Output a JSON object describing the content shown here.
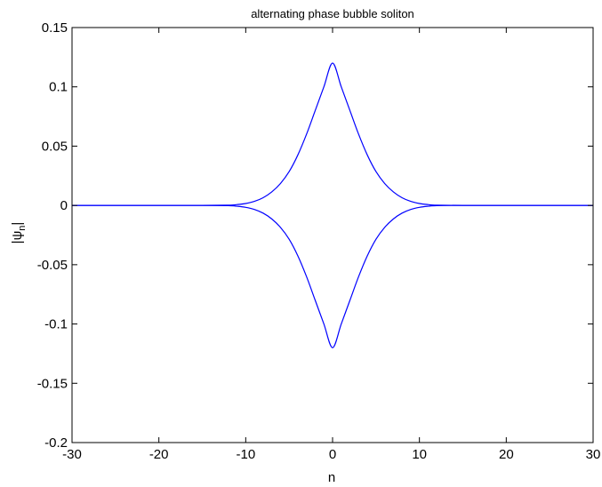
{
  "chart_data": {
    "type": "line",
    "title": "alternating phase bubble soliton",
    "xlabel": "n",
    "ylabel_main": "|ψ",
    "ylabel_sub": "n",
    "ylabel_tail": "|",
    "xlim": [
      -30,
      30
    ],
    "ylim": [
      -0.2,
      0.15
    ],
    "xticks": [
      -30,
      -20,
      -10,
      0,
      10,
      20,
      30
    ],
    "xtick_labels": [
      "-30",
      "-20",
      "-10",
      "0",
      "10",
      "20",
      "30"
    ],
    "yticks": [
      -0.2,
      -0.15,
      -0.1,
      -0.05,
      0,
      0.05,
      0.1,
      0.15
    ],
    "ytick_labels": [
      "-0.2",
      "-0.15",
      "-0.1",
      "-0.05",
      "0",
      "0.05",
      "0.1",
      "0.15"
    ],
    "grid": false,
    "line_color": "#0000ff",
    "series": [
      {
        "x": [
          -30,
          -20,
          -15,
          -12,
          -11,
          -10,
          -9,
          -8,
          -7,
          -6,
          -5,
          -4,
          -3,
          -2,
          -1,
          0,
          1,
          2,
          3,
          4,
          5,
          6,
          7,
          8,
          9,
          10,
          11,
          12,
          15,
          20,
          30
        ],
        "values": [
          0,
          0,
          0,
          0.0002,
          0.0007,
          0.0016,
          0.0034,
          0.0065,
          0.0114,
          0.0185,
          0.0285,
          0.0425,
          0.06,
          0.08,
          0.1,
          0.12,
          0.1,
          0.08,
          0.06,
          0.0425,
          0.0285,
          0.0185,
          0.0114,
          0.0065,
          0.0034,
          0.0016,
          0.0007,
          0.0002,
          0,
          0,
          0
        ]
      },
      {
        "x": [
          -30,
          -20,
          -15,
          -12,
          -11,
          -10,
          -9,
          -8,
          -7,
          -6,
          -5,
          -4,
          -3,
          -2,
          -1,
          0,
          1,
          2,
          3,
          4,
          5,
          6,
          7,
          8,
          9,
          10,
          11,
          12,
          15,
          20,
          30
        ],
        "values": [
          0,
          0,
          0,
          -0.0002,
          -0.0007,
          -0.0016,
          -0.0034,
          -0.0065,
          -0.0114,
          -0.0185,
          -0.0285,
          -0.0425,
          -0.06,
          -0.08,
          -0.1,
          -0.12,
          -0.1,
          -0.08,
          -0.06,
          -0.0425,
          -0.0285,
          -0.0185,
          -0.0114,
          -0.0065,
          -0.0034,
          -0.0016,
          -0.0007,
          -0.0002,
          0,
          0,
          0
        ]
      }
    ]
  }
}
